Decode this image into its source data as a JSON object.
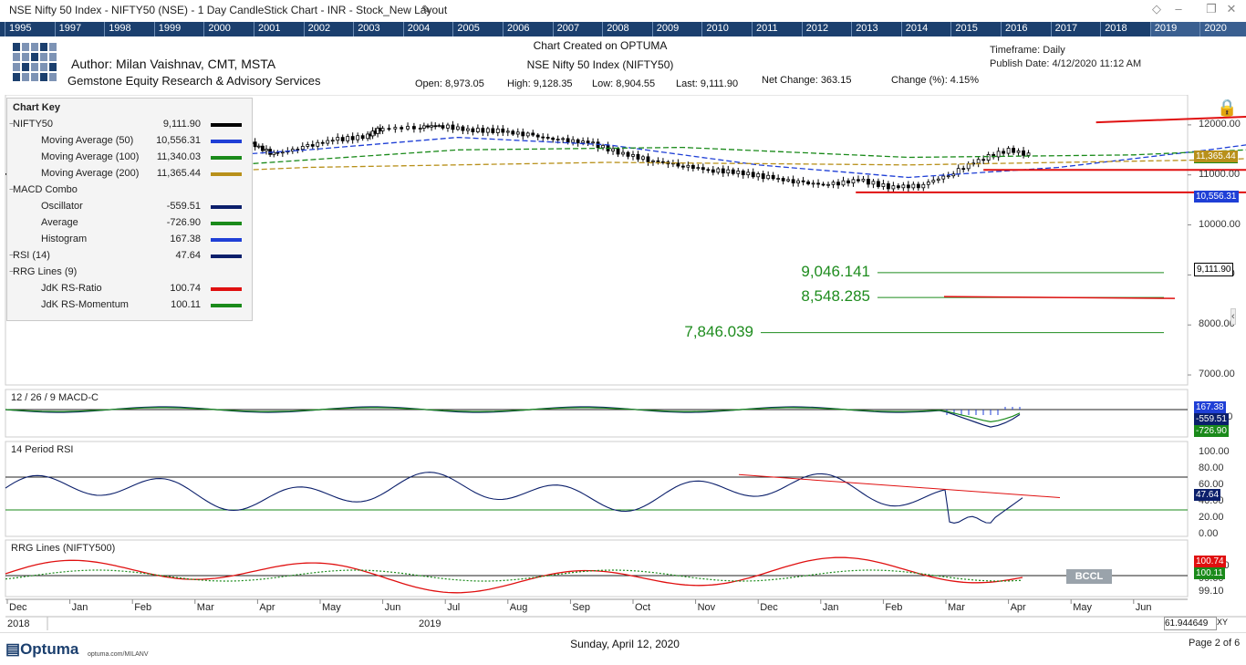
{
  "window": {
    "title": "NSE Nifty 50 Index - NIFTY50 (NSE) - 1 Day CandleStick Chart - INR - Stock_New Layout",
    "pencil_icon": "pencil-icon",
    "controls": [
      "diamond-icon",
      "minimize-icon",
      "restore-icon",
      "close-icon"
    ]
  },
  "timeline": {
    "years": [
      "1995",
      "1997",
      "1998",
      "1999",
      "2000",
      "2001",
      "2002",
      "2003",
      "2004",
      "2005",
      "2006",
      "2007",
      "2008",
      "2009",
      "2010",
      "2011",
      "2012",
      "2013",
      "2014",
      "2015",
      "2016",
      "2017",
      "2018",
      "2019",
      "2020"
    ]
  },
  "header": {
    "author": "Author: Milan Vaishnav, CMT, MSTA",
    "company": "Gemstone Equity Research & Advisory Services",
    "created": "Chart Created on OPTUMA",
    "index_name": "NSE Nifty 50 Index (NIFTY50)",
    "timeframe": "Timeframe: Daily",
    "publish_date": "Publish Date: 4/12/2020 11:12 AM",
    "open": "Open: 8,973.05",
    "high": "High: 9,128.35",
    "low": "Low: 8,904.55",
    "last": "Last: 9,111.90",
    "net_change": "Net Change: 363.15",
    "change_pct": "Change (%): 4.15%"
  },
  "chart_key": {
    "title": "Chart Key",
    "items": [
      {
        "label": "NIFTY50",
        "value": "9,111.90",
        "color": "#000000",
        "indent": 0
      },
      {
        "label": "Moving Average (50)",
        "value": "10,556.31",
        "color": "#1f3fd6",
        "indent": 1
      },
      {
        "label": "Moving Average (100)",
        "value": "11,340.03",
        "color": "#1a8a1a",
        "indent": 1
      },
      {
        "label": "Moving Average (200)",
        "value": "11,365.44",
        "color": "#b8901a",
        "indent": 1
      },
      {
        "label": "MACD Combo",
        "value": "",
        "color": "",
        "indent": 0
      },
      {
        "label": "Oscillator",
        "value": "-559.51",
        "color": "#0b1f6b",
        "indent": 1
      },
      {
        "label": "Average",
        "value": "-726.90",
        "color": "#1a8a1a",
        "indent": 1
      },
      {
        "label": "Histogram",
        "value": "167.38",
        "color": "#1f3fd6",
        "indent": 1
      },
      {
        "label": "RSI (14)",
        "value": "47.64",
        "color": "#0b1f6b",
        "indent": 0
      },
      {
        "label": "RRG Lines (9)",
        "value": "",
        "color": "",
        "indent": 0
      },
      {
        "label": "JdK RS-Ratio",
        "value": "100.74",
        "color": "#e01010",
        "indent": 1
      },
      {
        "label": "JdK RS-Momentum",
        "value": "100.11",
        "color": "#1a8a1a",
        "indent": 1
      }
    ]
  },
  "chart_data": [
    {
      "type": "line",
      "subtype": "candlestick",
      "title": "NSE Nifty 50 Index (NIFTY50)",
      "y_ticks": [
        "12000.00",
        "11000.00",
        "10000.00",
        "9000.00",
        "8000.00",
        "7000.00"
      ],
      "ylim": [
        6800,
        12600
      ],
      "x_labels": [
        "Dec",
        "Jan",
        "Feb",
        "Mar",
        "Apr",
        "May",
        "Jun",
        "Jul",
        "Aug",
        "Sep",
        "Oct",
        "Nov",
        "Dec",
        "Jan",
        "Feb",
        "Mar",
        "Apr",
        "May",
        "Jun"
      ],
      "x_years": [
        "2018",
        "2019"
      ],
      "price_path": [
        [
          0,
          11020
        ],
        [
          0.03,
          11050
        ],
        [
          0.06,
          11150
        ],
        [
          0.1,
          11300
        ],
        [
          0.15,
          11580
        ],
        [
          0.2,
          11680
        ],
        [
          0.25,
          11720
        ],
        [
          0.3,
          11860
        ],
        [
          0.33,
          11620
        ],
        [
          0.36,
          11410
        ],
        [
          0.4,
          11550
        ],
        [
          0.44,
          11700
        ],
        [
          0.48,
          11760
        ],
        [
          0.5,
          11920
        ],
        [
          0.55,
          11950
        ],
        [
          0.58,
          11990
        ],
        [
          0.62,
          11900
        ],
        [
          0.66,
          11880
        ],
        [
          0.7,
          11800
        ],
        [
          0.74,
          11700
        ],
        [
          0.78,
          11650
        ],
        [
          0.82,
          11450
        ],
        [
          0.86,
          11300
        ],
        [
          0.9,
          11200
        ],
        [
          0.94,
          11100
        ],
        [
          0.98,
          11050
        ],
        [
          1.02,
          10950
        ],
        [
          1.06,
          10850
        ],
        [
          1.1,
          10800
        ],
        [
          1.14,
          10900
        ],
        [
          1.18,
          10760
        ],
        [
          1.22,
          10780
        ],
        [
          1.26,
          11000
        ],
        [
          1.3,
          11300
        ],
        [
          1.34,
          11500
        ],
        [
          1.38,
          11350
        ],
        [
          1.42,
          11150
        ],
        [
          1.46,
          11400
        ],
        [
          1.5,
          11650
        ],
        [
          1.54,
          11850
        ],
        [
          1.58,
          11950
        ],
        [
          1.62,
          11980
        ],
        [
          1.66,
          12050
        ],
        [
          1.7,
          12100
        ],
        [
          1.74,
          12050
        ],
        [
          1.78,
          12150
        ],
        [
          1.82,
          12200
        ],
        [
          1.86,
          12250
        ],
        [
          1.9,
          12280
        ],
        [
          1.94,
          12300
        ],
        [
          1.98,
          12200
        ],
        [
          2.02,
          12150
        ],
        [
          2.06,
          12050
        ],
        [
          2.1,
          11700
        ],
        [
          2.14,
          11900
        ],
        [
          2.18,
          12050
        ],
        [
          2.22,
          12100
        ],
        [
          2.26,
          11900
        ],
        [
          2.3,
          11700
        ],
        [
          2.34,
          11400
        ],
        [
          2.37,
          11100
        ],
        [
          2.4,
          10950
        ],
        [
          2.43,
          10500
        ],
        [
          2.46,
          10000
        ],
        [
          2.49,
          9400
        ],
        [
          2.52,
          8700
        ],
        [
          2.55,
          8300
        ],
        [
          2.58,
          7900
        ],
        [
          2.61,
          7650
        ],
        [
          2.64,
          8300
        ],
        [
          2.67,
          8550
        ],
        [
          2.7,
          8200
        ],
        [
          2.73,
          8700
        ],
        [
          2.76,
          8900
        ],
        [
          2.79,
          9111
        ]
      ],
      "moving_averages": [
        {
          "name": "Moving Average (50)",
          "value_label": "10,556.31",
          "color": "#1f3fd6"
        },
        {
          "name": "Moving Average (100)",
          "value_label": "11,340.03",
          "color": "#1a8a1a"
        },
        {
          "name": "Moving Average (200)",
          "value_label": "11,365.44",
          "color": "#b8901a"
        }
      ],
      "last_price_tag": "9,111.90",
      "levels": [
        {
          "label": "9,046.141",
          "value": 9046.141
        },
        {
          "label": "8,548.285",
          "value": 8548.285
        },
        {
          "label": "7,846.039",
          "value": 7846.039
        }
      ]
    },
    {
      "type": "line",
      "title": "12 / 26 / 9 MACD-C",
      "y_ticks": [
        "0.00",
        "-200.00"
      ],
      "tags": [
        {
          "text": "167.38",
          "color": "#1f3fd6"
        },
        {
          "text": "-559.51",
          "color": "#0b1f6b"
        },
        {
          "text": "-726.90",
          "color": "#1a8a1a"
        }
      ]
    },
    {
      "type": "line",
      "title": "14 Period RSI",
      "y_ticks": [
        "100.00",
        "80.00",
        "60.00",
        "40.00",
        "20.00",
        "0.00"
      ],
      "ylim": [
        0,
        100
      ],
      "overbought": 70,
      "oversold": 30,
      "tag": "47.64"
    },
    {
      "type": "line",
      "title": "RRG Lines (NIFTY500)",
      "y_ticks": [
        "100.00",
        "99.60",
        "99.10"
      ],
      "tags": [
        {
          "text": "100.74",
          "color": "#e01010"
        },
        {
          "text": "100.11",
          "color": "#1a8a1a"
        }
      ],
      "watermark": "BCCL"
    }
  ],
  "footer": {
    "logo": "Optuma",
    "url": "optuma.com/MILANV",
    "date": "Sunday, April 12, 2020",
    "page": "Page 2 of 6",
    "coord": "61.944649",
    "xy": "XY"
  }
}
